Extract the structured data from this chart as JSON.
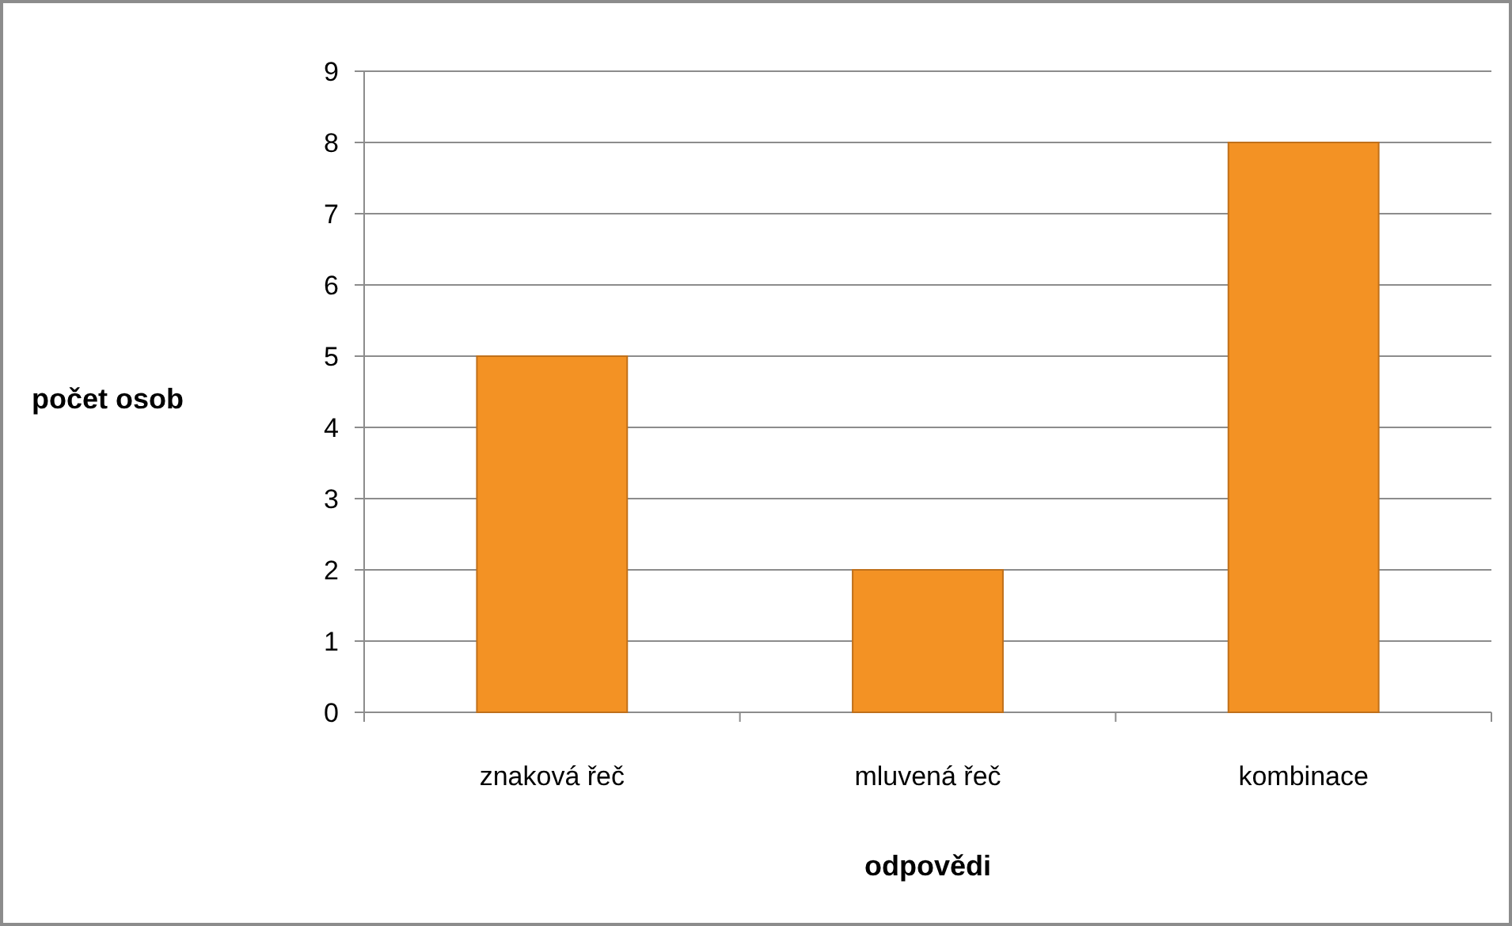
{
  "chart_data": {
    "type": "bar",
    "xlabel": "odpovědi",
    "ylabel": "počet osob",
    "categories": [
      "znaková řeč",
      "mluvená řeč",
      "kombinace"
    ],
    "values": [
      5,
      2,
      8
    ],
    "color": "#f39224",
    "ylim": [
      0,
      9
    ],
    "yticks": [
      0,
      1,
      2,
      3,
      4,
      5,
      6,
      7,
      8,
      9
    ],
    "grid": "y"
  }
}
